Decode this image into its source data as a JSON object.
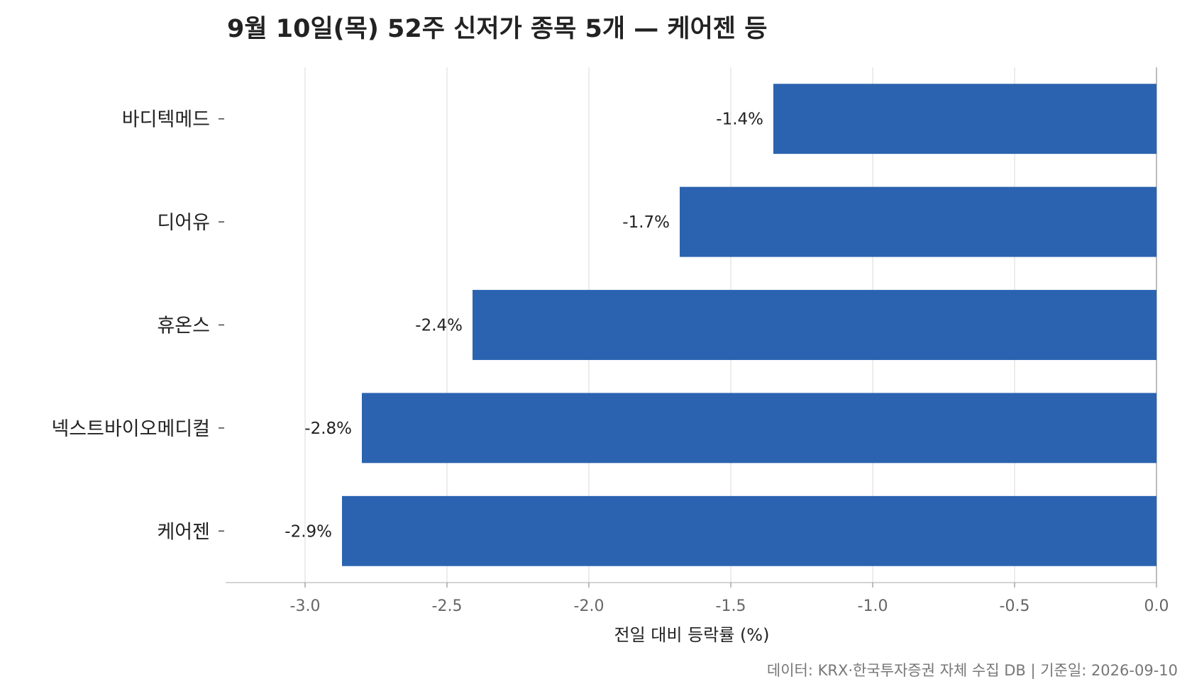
{
  "chart_data": {
    "type": "bar",
    "orientation": "horizontal",
    "title": "9월 10일(목) 52주 신저가 종목 5개 — 케어젠 등",
    "categories": [
      "바디텍메드",
      "디어유",
      "휴온스",
      "넥스트바이오메디컬",
      "케어젠"
    ],
    "values": [
      -1.35,
      -1.68,
      -2.41,
      -2.8,
      -2.87
    ],
    "data_labels": [
      "-1.4%",
      "-1.7%",
      "-2.4%",
      "-2.8%",
      "-2.9%"
    ],
    "xlabel": "전일 대비 등락률 (%)",
    "ylabel": "",
    "xlim": [
      -3.28,
      0.0
    ],
    "xticks": [
      -3.0,
      -2.5,
      -2.0,
      -1.5,
      -1.0,
      -0.5,
      0.0
    ],
    "xtick_labels": [
      "-3.0",
      "-2.5",
      "-2.0",
      "-1.5",
      "-1.0",
      "-0.5",
      "0.0"
    ],
    "grid": "vertical",
    "bar_color": "#2b63b0",
    "source": "데이터: KRX·한국투자증권 자체 수집 DB  |  기준일: 2026-09-10"
  }
}
